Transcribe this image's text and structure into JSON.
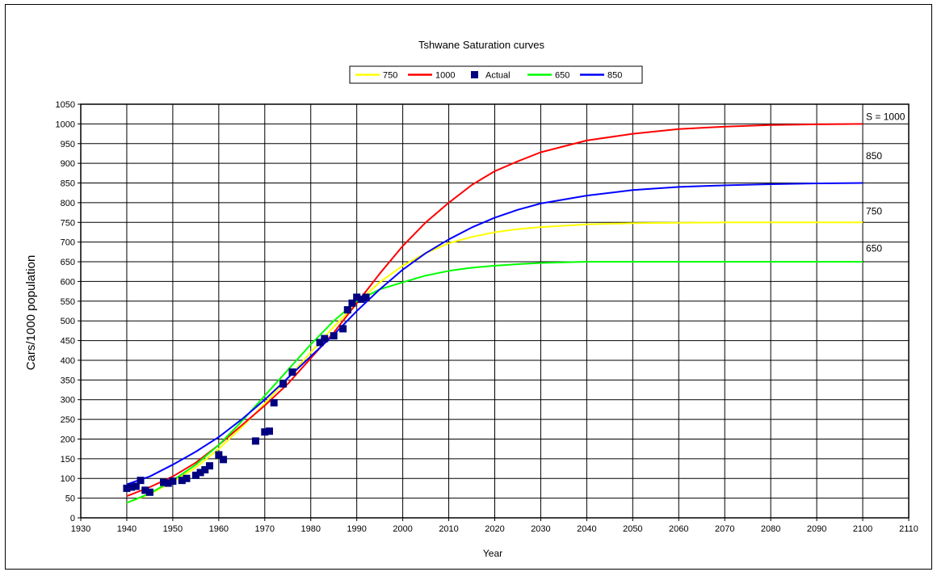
{
  "chart_data": {
    "type": "line",
    "title": "Tshwane Saturation curves",
    "xlabel": "Year",
    "ylabel": "Cars/1000 population",
    "xlim": [
      1930,
      2110
    ],
    "ylim": [
      0,
      1050
    ],
    "x_ticks": [
      1930,
      1940,
      1950,
      1960,
      1970,
      1980,
      1990,
      2000,
      2010,
      2020,
      2030,
      2040,
      2050,
      2060,
      2070,
      2080,
      2090,
      2100,
      2110
    ],
    "x_tick_labels": [
      "1930",
      "1940",
      "1950",
      "1960",
      "1970",
      "1980",
      "1990",
      "2000",
      "2010",
      "2020",
      "2030",
      "2040",
      "2050",
      "2060",
      "2070",
      "2080",
      "2090",
      "2100",
      "2110"
    ],
    "y_ticks": [
      0,
      50,
      100,
      150,
      200,
      250,
      300,
      350,
      400,
      450,
      500,
      550,
      600,
      650,
      700,
      750,
      800,
      850,
      900,
      950,
      1000,
      1050
    ],
    "y_tick_labels": [
      "0",
      "50",
      "100",
      "150",
      "200",
      "250",
      "300",
      "350",
      "400",
      "450",
      "500",
      "550",
      "600",
      "650",
      "700",
      "750",
      "800",
      "850",
      "900",
      "950",
      "1000",
      "1050"
    ],
    "grid": true,
    "legend_position": "top-center",
    "legend": [
      {
        "label": "750",
        "color": "#ffff00",
        "marker": "line"
      },
      {
        "label": "1000",
        "color": "#ff0000",
        "marker": "line"
      },
      {
        "label": "Actual",
        "color": "#000080",
        "marker": "square"
      },
      {
        "label": "650",
        "color": "#00ff00",
        "marker": "line"
      },
      {
        "label": "850",
        "color": "#0000ff",
        "marker": "line"
      }
    ],
    "series": [
      {
        "name": "750",
        "color": "#ffff00",
        "type": "line",
        "x": [
          1940,
          1945,
          1950,
          1955,
          1960,
          1965,
          1970,
          1975,
          1980,
          1985,
          1990,
          1995,
          2000,
          2005,
          2010,
          2015,
          2020,
          2025,
          2030,
          2040,
          2050,
          2060,
          2070,
          2080,
          2090,
          2100
        ],
        "y": [
          38,
          60,
          92,
          128,
          175,
          230,
          290,
          355,
          420,
          485,
          545,
          598,
          640,
          672,
          697,
          713,
          725,
          733,
          738,
          745,
          748,
          749,
          750,
          750,
          750,
          750
        ]
      },
      {
        "name": "1000",
        "color": "#ff0000",
        "type": "line",
        "x": [
          1940,
          1945,
          1950,
          1955,
          1960,
          1965,
          1970,
          1975,
          1980,
          1985,
          1990,
          1995,
          2000,
          2005,
          2010,
          2015,
          2020,
          2025,
          2030,
          2040,
          2050,
          2060,
          2070,
          2080,
          2090,
          2100
        ],
        "y": [
          55,
          78,
          105,
          140,
          185,
          235,
          285,
          340,
          405,
          470,
          545,
          620,
          690,
          750,
          800,
          845,
          880,
          905,
          928,
          958,
          975,
          987,
          993,
          997,
          999,
          1000
        ]
      },
      {
        "name": "650",
        "color": "#00ff00",
        "type": "line",
        "x": [
          1940,
          1945,
          1950,
          1955,
          1960,
          1965,
          1970,
          1975,
          1980,
          1985,
          1990,
          1995,
          2000,
          2005,
          2010,
          2015,
          2020,
          2025,
          2030,
          2040,
          2050,
          2060,
          2070,
          2080,
          2090,
          2100
        ],
        "y": [
          38,
          62,
          95,
          135,
          185,
          245,
          310,
          375,
          440,
          500,
          550,
          580,
          598,
          615,
          627,
          635,
          640,
          644,
          647,
          650,
          650,
          650,
          650,
          650,
          650,
          650
        ]
      },
      {
        "name": "850",
        "color": "#0000ff",
        "type": "line",
        "x": [
          1940,
          1945,
          1950,
          1955,
          1960,
          1965,
          1970,
          1975,
          1980,
          1985,
          1990,
          1995,
          2000,
          2005,
          2010,
          2015,
          2020,
          2025,
          2030,
          2040,
          2050,
          2060,
          2070,
          2080,
          2090,
          2100
        ],
        "y": [
          85,
          105,
          135,
          168,
          205,
          250,
          300,
          355,
          410,
          465,
          525,
          580,
          630,
          672,
          707,
          737,
          762,
          782,
          798,
          818,
          832,
          840,
          844,
          847,
          849,
          850
        ]
      },
      {
        "name": "Actual",
        "color": "#000080",
        "type": "scatter",
        "x": [
          1940,
          1941,
          1942,
          1943,
          1944,
          1945,
          1948,
          1949,
          1950,
          1952,
          1953,
          1955,
          1956,
          1957,
          1958,
          1960,
          1961,
          1968,
          1970,
          1971,
          1972,
          1974,
          1976,
          1982,
          1983,
          1985,
          1987,
          1988,
          1989,
          1990,
          1991,
          1992
        ],
        "y": [
          75,
          78,
          80,
          95,
          70,
          65,
          90,
          88,
          93,
          95,
          100,
          108,
          115,
          122,
          132,
          160,
          148,
          195,
          218,
          220,
          292,
          340,
          370,
          445,
          455,
          462,
          480,
          528,
          545,
          560,
          555,
          560
        ]
      }
    ],
    "annotations": [
      {
        "text": "S = 1000",
        "x": 2100,
        "y": 1000
      },
      {
        "text": "850",
        "x": 2100,
        "y": 900
      },
      {
        "text": "750",
        "x": 2100,
        "y": 760
      },
      {
        "text": "650",
        "x": 2100,
        "y": 665
      }
    ]
  }
}
